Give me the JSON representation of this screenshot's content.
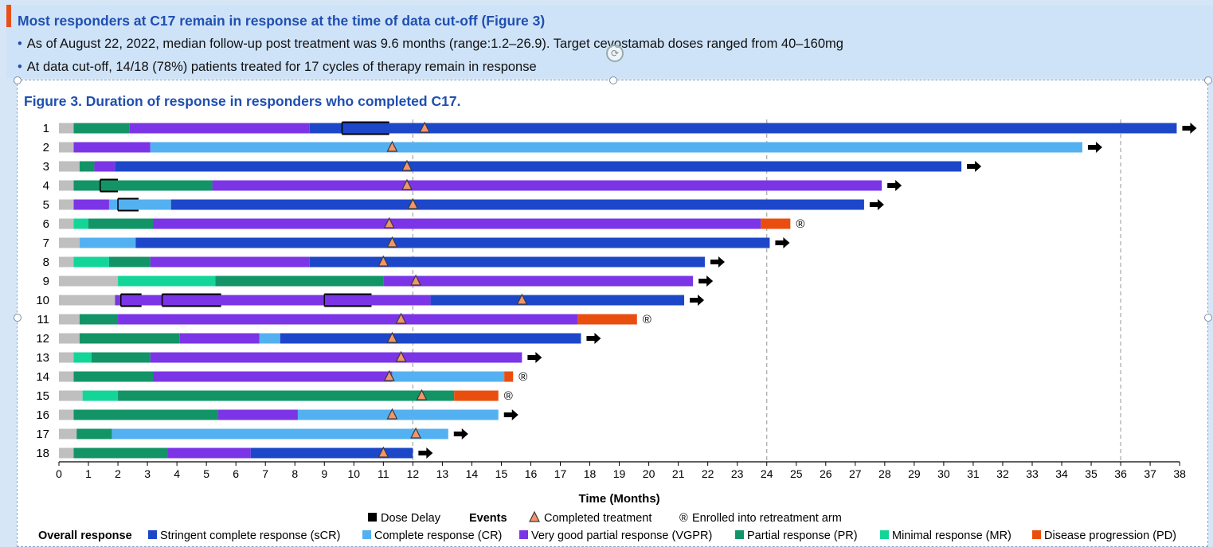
{
  "header": {
    "title": "Most responders at C17 remain in response at the time of data cut-off (Figure 3)",
    "bullets": [
      "As of August 22, 2022, median follow-up post treatment was 9.6 months (range:1.2–26.9). Target cevostamab doses ranged from 40–160mg",
      "At data cut-off, 14/18 (78%) patients treated for 17 cycles of therapy remain in response"
    ],
    "bullet_glyph": "•"
  },
  "figure": {
    "title": "Figure 3. Duration of response in responders who completed C17."
  },
  "chart_data": {
    "type": "bar",
    "orientation": "horizontal-swimmer",
    "xlabel": "Time (Months)",
    "xlim": [
      0,
      38
    ],
    "x_ticks": [
      0,
      1,
      2,
      3,
      4,
      5,
      6,
      7,
      8,
      9,
      10,
      11,
      12,
      13,
      14,
      15,
      16,
      17,
      18,
      19,
      20,
      21,
      22,
      23,
      24,
      25,
      26,
      27,
      28,
      29,
      30,
      31,
      32,
      33,
      34,
      35,
      36,
      37,
      38
    ],
    "reference_lines": [
      12,
      24,
      36
    ],
    "categories": [
      "1",
      "2",
      "3",
      "4",
      "5",
      "6",
      "7",
      "8",
      "9",
      "10",
      "11",
      "12",
      "13",
      "14",
      "15",
      "16",
      "17",
      "18"
    ],
    "colors": {
      "none": "#bfbfbf",
      "sCR": "#1d47c9",
      "CR": "#54b1f1",
      "VGPR": "#7b35e6",
      "PR": "#129467",
      "MR": "#14d598",
      "PD": "#ea4e0e",
      "triangle": "#f2956b"
    },
    "patients": [
      {
        "id": "1",
        "segments": [
          [
            "none",
            0,
            0.5
          ],
          [
            "PR",
            0.5,
            2.4
          ],
          [
            "VGPR",
            2.4,
            8.5
          ],
          [
            "sCR",
            8.5,
            37.9
          ]
        ],
        "treatment_completed": 12.4,
        "ongoing": true,
        "retreatment": false,
        "dose_delays": [
          [
            9.6,
            11.2
          ]
        ]
      },
      {
        "id": "2",
        "segments": [
          [
            "none",
            0,
            0.5
          ],
          [
            "VGPR",
            0.5,
            3.1
          ],
          [
            "CR",
            3.1,
            34.7
          ]
        ],
        "treatment_completed": 11.3,
        "ongoing": true,
        "retreatment": false,
        "dose_delays": []
      },
      {
        "id": "3",
        "segments": [
          [
            "none",
            0,
            0.7
          ],
          [
            "PR",
            0.7,
            1.2
          ],
          [
            "VGPR",
            1.2,
            1.9
          ],
          [
            "sCR",
            1.9,
            30.6
          ]
        ],
        "treatment_completed": 11.8,
        "ongoing": true,
        "retreatment": false,
        "dose_delays": []
      },
      {
        "id": "4",
        "segments": [
          [
            "none",
            0,
            0.5
          ],
          [
            "PR",
            0.5,
            5.2
          ],
          [
            "VGPR",
            5.2,
            27.9
          ]
        ],
        "treatment_completed": 11.8,
        "ongoing": true,
        "retreatment": false,
        "dose_delays": [
          [
            1.4,
            2.0
          ]
        ]
      },
      {
        "id": "5",
        "segments": [
          [
            "none",
            0,
            0.5
          ],
          [
            "VGPR",
            0.5,
            1.7
          ],
          [
            "CR",
            1.7,
            3.8
          ],
          [
            "sCR",
            3.8,
            27.3
          ]
        ],
        "treatment_completed": 12.0,
        "ongoing": true,
        "retreatment": false,
        "dose_delays": [
          [
            2.0,
            2.7
          ]
        ]
      },
      {
        "id": "6",
        "segments": [
          [
            "none",
            0,
            0.5
          ],
          [
            "MR",
            0.5,
            1.0
          ],
          [
            "PR",
            1.0,
            3.2
          ],
          [
            "VGPR",
            3.2,
            23.8
          ],
          [
            "PD",
            23.8,
            24.8
          ]
        ],
        "treatment_completed": 11.2,
        "ongoing": false,
        "retreatment": true,
        "dose_delays": []
      },
      {
        "id": "7",
        "segments": [
          [
            "none",
            0,
            0.7
          ],
          [
            "CR",
            0.7,
            2.6
          ],
          [
            "sCR",
            2.6,
            24.1
          ]
        ],
        "treatment_completed": 11.3,
        "ongoing": true,
        "retreatment": false,
        "dose_delays": []
      },
      {
        "id": "8",
        "segments": [
          [
            "none",
            0,
            0.5
          ],
          [
            "MR",
            0.5,
            1.7
          ],
          [
            "PR",
            1.7,
            3.1
          ],
          [
            "VGPR",
            3.1,
            8.5
          ],
          [
            "sCR",
            8.5,
            21.9
          ]
        ],
        "treatment_completed": 11.0,
        "ongoing": true,
        "retreatment": false,
        "dose_delays": []
      },
      {
        "id": "9",
        "segments": [
          [
            "none",
            0,
            2.0
          ],
          [
            "MR",
            2.0,
            5.3
          ],
          [
            "PR",
            5.3,
            11.0
          ],
          [
            "VGPR",
            11.0,
            21.5
          ]
        ],
        "treatment_completed": 12.1,
        "ongoing": true,
        "retreatment": false,
        "dose_delays": []
      },
      {
        "id": "10",
        "segments": [
          [
            "none",
            0,
            1.9
          ],
          [
            "VGPR",
            1.9,
            12.6
          ],
          [
            "sCR",
            12.6,
            21.2
          ]
        ],
        "treatment_completed": 15.7,
        "ongoing": true,
        "retreatment": false,
        "dose_delays": [
          [
            2.1,
            2.8
          ],
          [
            3.5,
            5.5
          ],
          [
            9.0,
            10.6
          ]
        ]
      },
      {
        "id": "11",
        "segments": [
          [
            "none",
            0,
            0.7
          ],
          [
            "PR",
            0.7,
            2.0
          ],
          [
            "VGPR",
            2.0,
            17.6
          ],
          [
            "PD",
            17.6,
            19.6
          ]
        ],
        "treatment_completed": 11.6,
        "ongoing": false,
        "retreatment": true,
        "dose_delays": []
      },
      {
        "id": "12",
        "segments": [
          [
            "none",
            0,
            0.7
          ],
          [
            "PR",
            0.7,
            4.1
          ],
          [
            "VGPR",
            4.1,
            6.8
          ],
          [
            "CR",
            6.8,
            7.5
          ],
          [
            "sCR",
            7.5,
            17.7
          ]
        ],
        "treatment_completed": 11.3,
        "ongoing": true,
        "retreatment": false,
        "dose_delays": []
      },
      {
        "id": "13",
        "segments": [
          [
            "none",
            0,
            0.5
          ],
          [
            "MR",
            0.5,
            1.1
          ],
          [
            "PR",
            1.1,
            3.1
          ],
          [
            "VGPR",
            3.1,
            15.7
          ]
        ],
        "treatment_completed": 11.6,
        "ongoing": true,
        "retreatment": false,
        "dose_delays": []
      },
      {
        "id": "14",
        "segments": [
          [
            "none",
            0,
            0.5
          ],
          [
            "PR",
            0.5,
            3.2
          ],
          [
            "VGPR",
            3.2,
            11.3
          ],
          [
            "CR",
            11.3,
            15.1
          ],
          [
            "PD",
            15.1,
            15.4
          ]
        ],
        "treatment_completed": 11.2,
        "ongoing": false,
        "retreatment": true,
        "dose_delays": []
      },
      {
        "id": "15",
        "segments": [
          [
            "none",
            0,
            0.8
          ],
          [
            "MR",
            0.8,
            2.0
          ],
          [
            "PR",
            2.0,
            13.4
          ],
          [
            "PD",
            13.4,
            14.9
          ]
        ],
        "treatment_completed": 12.3,
        "ongoing": false,
        "retreatment": true,
        "dose_delays": []
      },
      {
        "id": "16",
        "segments": [
          [
            "none",
            0,
            0.5
          ],
          [
            "PR",
            0.5,
            5.4
          ],
          [
            "VGPR",
            5.4,
            8.1
          ],
          [
            "CR",
            8.1,
            14.9
          ]
        ],
        "treatment_completed": 11.3,
        "ongoing": true,
        "retreatment": false,
        "dose_delays": []
      },
      {
        "id": "17",
        "segments": [
          [
            "none",
            0,
            0.6
          ],
          [
            "PR",
            0.6,
            1.8
          ],
          [
            "CR",
            1.8,
            13.2
          ]
        ],
        "treatment_completed": 12.1,
        "ongoing": true,
        "retreatment": false,
        "dose_delays": []
      },
      {
        "id": "18",
        "segments": [
          [
            "none",
            0,
            0.5
          ],
          [
            "PR",
            0.5,
            3.7
          ],
          [
            "VGPR",
            3.7,
            6.5
          ],
          [
            "sCR",
            6.5,
            12.0
          ]
        ],
        "treatment_completed": 11.0,
        "ongoing": true,
        "retreatment": false,
        "dose_delays": []
      }
    ],
    "legend": {
      "dose_delay": "Dose Delay",
      "events_label": "Events",
      "completed_treatment": "Completed treatment",
      "retreatment_symbol": "®",
      "retreatment": "Enrolled into retreatment arm",
      "overall_response_label": "Overall response",
      "response_items": [
        {
          "key": "sCR",
          "label": "Stringent complete response (sCR)"
        },
        {
          "key": "CR",
          "label": "Complete response (CR)"
        },
        {
          "key": "VGPR",
          "label": "Very good partial response (VGPR)"
        },
        {
          "key": "PR",
          "label": "Partial response (PR)"
        },
        {
          "key": "MR",
          "label": "Minimal response (MR)"
        },
        {
          "key": "PD",
          "label": "Disease progression (PD)"
        }
      ]
    }
  }
}
